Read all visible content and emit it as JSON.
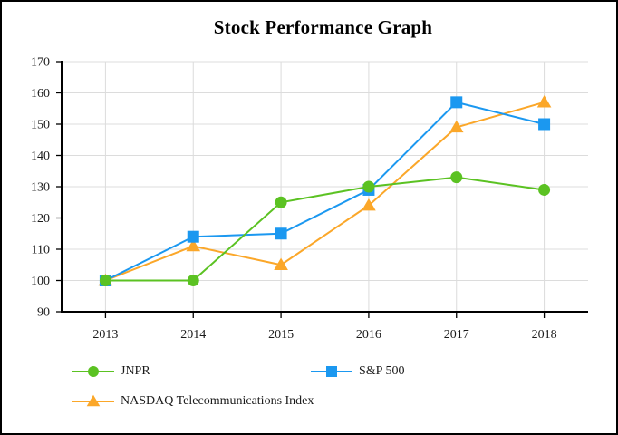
{
  "chart_data": {
    "type": "line",
    "title": "Stock Performance Graph",
    "categories": [
      "2013",
      "2014",
      "2015",
      "2016",
      "2017",
      "2018"
    ],
    "series": [
      {
        "name": "JNPR",
        "marker": "circle",
        "color": "#5BC222",
        "values": [
          100,
          100,
          125,
          130,
          133,
          129
        ]
      },
      {
        "name": "S&P 500",
        "marker": "square",
        "color": "#1B98F0",
        "values": [
          100,
          114,
          115,
          129,
          157,
          150
        ]
      },
      {
        "name": "NASDAQ Telecommunications Index",
        "marker": "triangle",
        "color": "#FBA729",
        "values": [
          100,
          111,
          105,
          124,
          149,
          157
        ]
      }
    ],
    "xlabel": "",
    "ylabel": "",
    "ylim": [
      90,
      170
    ],
    "y_ticks": [
      90,
      100,
      110,
      120,
      130,
      140,
      150,
      160,
      170
    ],
    "grid": true,
    "legend_position": "bottom-left",
    "gridline_color": "#DCDCDC",
    "axis_color": "#000000",
    "tick_label_color": "#1a1a1a",
    "background_color": "#FFFFFF",
    "border_color": "#000000"
  }
}
